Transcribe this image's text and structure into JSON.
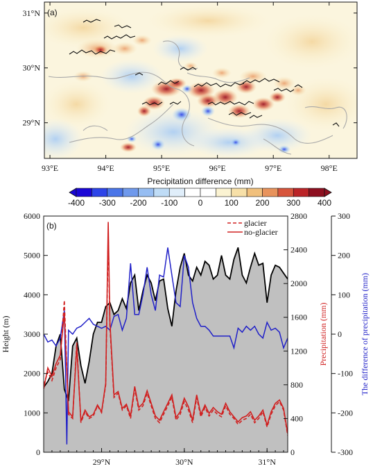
{
  "chart_data": [
    {
      "panel_label": "(a)",
      "type": "heatmap",
      "title": "",
      "xlabel": "",
      "ylabel": "",
      "x_ticks": [
        "93°E",
        "94°E",
        "95°E",
        "96°E",
        "97°E",
        "98°E"
      ],
      "y_ticks": [
        "31°N",
        "30°N",
        "29°N"
      ],
      "xlim": [
        92.9,
        98.5
      ],
      "ylim": [
        28.35,
        31.2
      ],
      "colorbar": {
        "label": "Precipitation difference (mm)",
        "ticks": [
          "-400",
          "-300",
          "-200",
          "-100",
          "0",
          "100",
          "200",
          "300",
          "400"
        ],
        "levels": [
          -400,
          -350,
          -300,
          -250,
          -200,
          -150,
          -100,
          -50,
          0,
          50,
          100,
          150,
          200,
          250,
          300,
          350,
          400
        ],
        "colors": [
          "#1a06d6",
          "#2d44e8",
          "#4a75e8",
          "#6f99ec",
          "#96bdf2",
          "#bfdcf6",
          "#e0eefa",
          "#ffffff",
          "#ffffff",
          "#fbf3d2",
          "#f7e0a8",
          "#f1c07c",
          "#e8935c",
          "#d7553c",
          "#bb2428",
          "#8e1020"
        ]
      },
      "notes": "Glacier outlines drawn as grey and black contours; strongest positive anomalies along the ranges between 94.5°E and 97.2°E."
    },
    {
      "panel_label": "(b)",
      "type": "line",
      "xlabel": "",
      "x_ticks": [
        "29°N",
        "30°N",
        "31°N"
      ],
      "xlim": [
        28.3,
        31.25
      ],
      "y_left": {
        "label": "Height (m)",
        "range": [
          0,
          6000
        ],
        "ticks": [
          "0",
          "1000",
          "2000",
          "3000",
          "4000",
          "5000",
          "6000"
        ]
      },
      "y_right1": {
        "label": "Precipitation (mm)",
        "range": [
          0,
          2800
        ],
        "ticks": [
          "0",
          "400",
          "800",
          "1200",
          "1600",
          "2000",
          "2400",
          "2800"
        ]
      },
      "y_right2": {
        "label": "The difference of precipitation (mm)",
        "range": [
          -300,
          300
        ],
        "ticks": [
          "300",
          "200",
          "100",
          "0",
          "-100",
          "-200",
          "-300"
        ]
      },
      "legend": [
        {
          "name": "glacier",
          "style": "dashed",
          "color": "#d02020"
        },
        {
          "name": "no-glacier",
          "style": "solid",
          "color": "#d02020"
        }
      ],
      "series": [
        {
          "name": "terrain height",
          "axis": "left",
          "color": "#000000",
          "fill": "#c0c0c0",
          "x": [
            28.3,
            28.35,
            28.4,
            28.45,
            28.5,
            28.55,
            28.6,
            28.65,
            28.7,
            28.75,
            28.8,
            28.85,
            28.9,
            28.95,
            29.0,
            29.05,
            29.1,
            29.15,
            29.2,
            29.25,
            29.3,
            29.35,
            29.4,
            29.45,
            29.5,
            29.55,
            29.6,
            29.65,
            29.7,
            29.75,
            29.8,
            29.85,
            29.9,
            29.95,
            30.0,
            30.05,
            30.1,
            30.15,
            30.2,
            30.25,
            30.3,
            30.35,
            30.4,
            30.45,
            30.5,
            30.55,
            30.6,
            30.65,
            30.7,
            30.75,
            30.8,
            30.85,
            30.9,
            30.95,
            31.0,
            31.05,
            31.1,
            31.15,
            31.2,
            31.25
          ],
          "values": [
            1650,
            1800,
            2000,
            2700,
            3000,
            1600,
            1300,
            2700,
            2900,
            2200,
            1750,
            2300,
            3000,
            3300,
            3300,
            3700,
            3800,
            3500,
            3600,
            3900,
            3650,
            4300,
            4500,
            3600,
            4100,
            4500,
            4300,
            3850,
            4350,
            4400,
            3650,
            3200,
            4100,
            4700,
            5050,
            4500,
            4350,
            4700,
            4500,
            4850,
            4750,
            4400,
            4500,
            5000,
            4500,
            4400,
            4900,
            5200,
            4500,
            4300,
            4700,
            5050,
            4750,
            4800,
            3800,
            4500,
            4750,
            4700,
            4550,
            4400
          ]
        },
        {
          "name": "The difference of precipitation",
          "axis": "right2",
          "color": "#2020c8",
          "x": [
            28.3,
            28.35,
            28.4,
            28.45,
            28.5,
            28.55,
            28.58,
            28.6,
            28.65,
            28.7,
            28.75,
            28.8,
            28.85,
            28.9,
            28.95,
            29.0,
            29.05,
            29.1,
            29.15,
            29.2,
            29.25,
            29.3,
            29.35,
            29.4,
            29.45,
            29.5,
            29.55,
            29.6,
            29.65,
            29.7,
            29.75,
            29.8,
            29.85,
            29.9,
            29.95,
            30.0,
            30.05,
            30.1,
            30.15,
            30.2,
            30.25,
            30.3,
            30.35,
            30.4,
            30.45,
            30.5,
            30.55,
            30.6,
            30.65,
            30.7,
            30.75,
            30.8,
            30.85,
            30.9,
            30.95,
            31.0,
            31.05,
            31.1,
            31.15,
            31.2,
            31.25
          ],
          "values": [
            0,
            -20,
            -15,
            -30,
            -10,
            60,
            -280,
            10,
            0,
            15,
            20,
            30,
            40,
            25,
            20,
            15,
            20,
            10,
            45,
            50,
            10,
            40,
            180,
            50,
            50,
            100,
            170,
            100,
            60,
            150,
            145,
            220,
            150,
            80,
            70,
            200,
            170,
            80,
            40,
            20,
            20,
            10,
            -5,
            -5,
            -5,
            -5,
            -5,
            -35,
            15,
            5,
            20,
            10,
            20,
            0,
            -10,
            30,
            10,
            15,
            5,
            -35,
            -10
          ]
        },
        {
          "name": "glacier",
          "axis": "right1",
          "color": "#d02020",
          "style": "dashed",
          "x": [
            28.3,
            28.35,
            28.4,
            28.45,
            28.5,
            28.55,
            28.6,
            28.65,
            28.7,
            28.75,
            28.8,
            28.85,
            28.9,
            28.95,
            29.0,
            29.05,
            29.08,
            29.1,
            29.15,
            29.2,
            29.25,
            29.3,
            29.35,
            29.4,
            29.45,
            29.5,
            29.55,
            29.6,
            29.65,
            29.7,
            29.75,
            29.8,
            29.85,
            29.9,
            29.95,
            30.0,
            30.05,
            30.1,
            30.15,
            30.2,
            30.25,
            30.3,
            30.35,
            30.4,
            30.45,
            30.5,
            30.55,
            30.6,
            30.65,
            30.7,
            30.75,
            30.8,
            30.85,
            30.9,
            30.95,
            31.0,
            31.05,
            31.1,
            31.15,
            31.2,
            31.25
          ],
          "values": [
            800,
            950,
            850,
            1000,
            1100,
            1800,
            450,
            400,
            1300,
            350,
            480,
            400,
            430,
            550,
            470,
            800,
            2600,
            1500,
            650,
            700,
            500,
            550,
            400,
            750,
            500,
            550,
            700,
            550,
            400,
            350,
            450,
            550,
            650,
            380,
            450,
            600,
            500,
            350,
            650,
            420,
            530,
            430,
            500,
            450,
            420,
            550,
            450,
            400,
            330,
            380,
            400,
            450,
            350,
            400,
            480,
            300,
            450,
            550,
            600,
            500,
            200
          ]
        },
        {
          "name": "no-glacier",
          "axis": "right1",
          "color": "#d02020",
          "style": "solid",
          "x": [
            28.3,
            28.35,
            28.4,
            28.45,
            28.5,
            28.55,
            28.6,
            28.65,
            28.7,
            28.75,
            28.8,
            28.85,
            28.9,
            28.95,
            29.0,
            29.05,
            29.08,
            29.1,
            29.15,
            29.2,
            29.25,
            29.3,
            29.35,
            29.4,
            29.45,
            29.5,
            29.55,
            29.6,
            29.65,
            29.7,
            29.75,
            29.8,
            29.85,
            29.9,
            29.95,
            30.0,
            30.05,
            30.1,
            30.15,
            30.2,
            30.25,
            30.3,
            30.35,
            30.4,
            30.45,
            30.5,
            30.55,
            30.6,
            30.65,
            30.7,
            30.75,
            30.8,
            30.85,
            30.9,
            30.95,
            31.0,
            31.05,
            31.1,
            31.15,
            31.2,
            31.25
          ],
          "values": [
            750,
            1000,
            900,
            1050,
            1150,
            1650,
            480,
            420,
            1250,
            370,
            500,
            420,
            450,
            560,
            480,
            820,
            2730,
            1550,
            680,
            720,
            520,
            570,
            430,
            780,
            530,
            580,
            730,
            580,
            430,
            380,
            480,
            580,
            680,
            410,
            480,
            640,
            540,
            380,
            680,
            450,
            560,
            460,
            530,
            480,
            450,
            580,
            480,
            420,
            360,
            410,
            430,
            480,
            380,
            430,
            500,
            320,
            480,
            580,
            620,
            520,
            220
          ]
        }
      ]
    }
  ]
}
